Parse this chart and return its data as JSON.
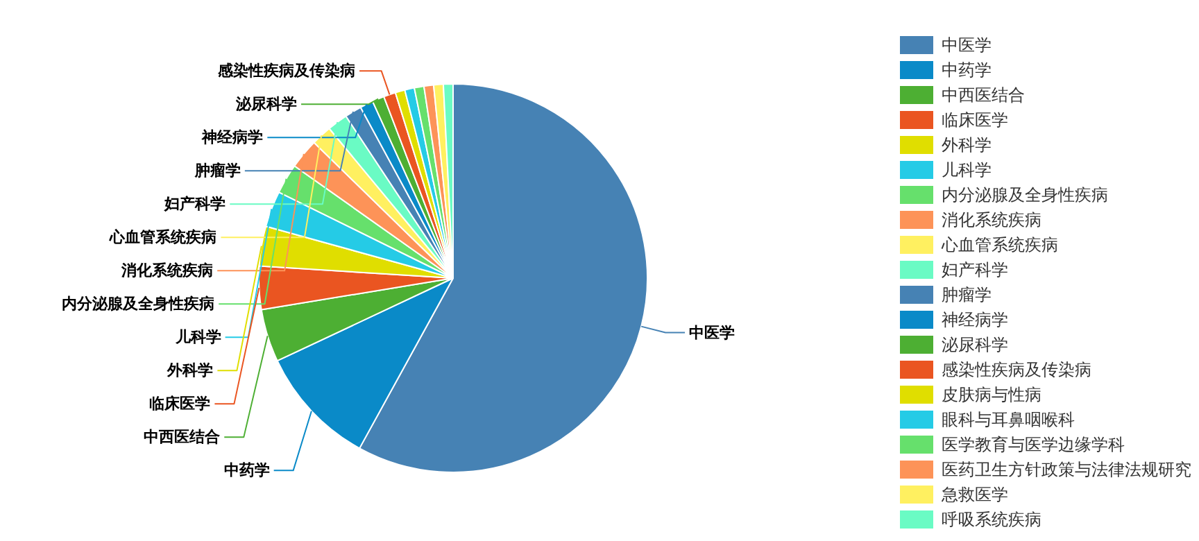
{
  "chart_data": {
    "type": "pie",
    "categories": [
      "中医学",
      "中药学",
      "中西医结合",
      "临床医学",
      "外科学",
      "儿科学",
      "内分泌腺及全身性疾病",
      "消化系统疾病",
      "心血管系统疾病",
      "妇产科学",
      "肿瘤学",
      "神经病学",
      "泌尿科学",
      "感染性疾病及传染病",
      "皮肤病与性病",
      "眼科与耳鼻咽喉科",
      "医学教育与医学边缘学科",
      "医药卫生方针政策与法律法规研究",
      "急救医学",
      "呼吸系统疾病"
    ],
    "values": [
      58.0,
      10.0,
      4.4,
      3.6,
      3.3,
      3.0,
      2.5,
      2.5,
      1.7,
      1.7,
      1.4,
      1.1,
      1.0,
      1.0,
      0.8,
      0.8,
      0.8,
      0.8,
      0.8,
      0.8
    ],
    "colors": [
      "#4682b4",
      "#0a8ac8",
      "#4daf33",
      "#ea5521",
      "#e0de00",
      "#25cbe6",
      "#66e06c",
      "#fd9358",
      "#fff060",
      "#6afbc4",
      "#4682b4",
      "#0a8ac8",
      "#4daf33",
      "#ea5521",
      "#e0de00",
      "#25cbe6",
      "#66e06c",
      "#fd9358",
      "#fff060",
      "#6afbc4"
    ],
    "legend": "right"
  }
}
